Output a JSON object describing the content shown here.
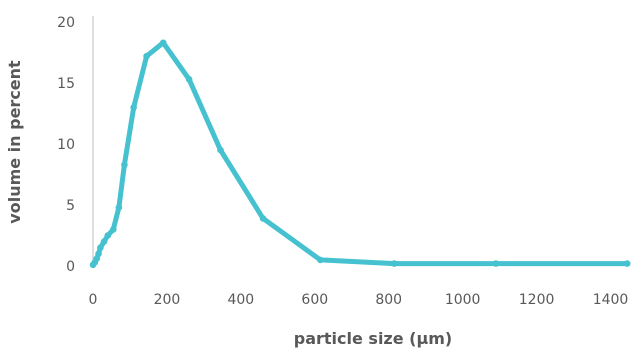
{
  "chart_data": {
    "type": "line",
    "title": "",
    "xlabel": "particle size (µm)",
    "ylabel": "volume in percent",
    "xlim": [
      0,
      1450
    ],
    "ylim": [
      0,
      20
    ],
    "xticks": [
      0,
      200,
      400,
      600,
      800,
      1000,
      1200,
      1400
    ],
    "yticks": [
      0,
      5,
      10,
      15,
      20
    ],
    "grid": false,
    "legend": "none",
    "series": [
      {
        "color": "#45c1cf",
        "x": [
          0,
          5,
          10,
          15,
          20,
          30,
          40,
          55,
          70,
          85,
          110,
          145,
          190,
          260,
          345,
          460,
          615,
          815,
          1090,
          1445
        ],
        "y": [
          0.1,
          0.3,
          0.6,
          1.0,
          1.5,
          2.0,
          2.5,
          3.0,
          4.8,
          8.3,
          13.0,
          17.2,
          18.3,
          15.3,
          9.5,
          3.9,
          0.5,
          0.2,
          0.2,
          0.2
        ]
      }
    ]
  }
}
